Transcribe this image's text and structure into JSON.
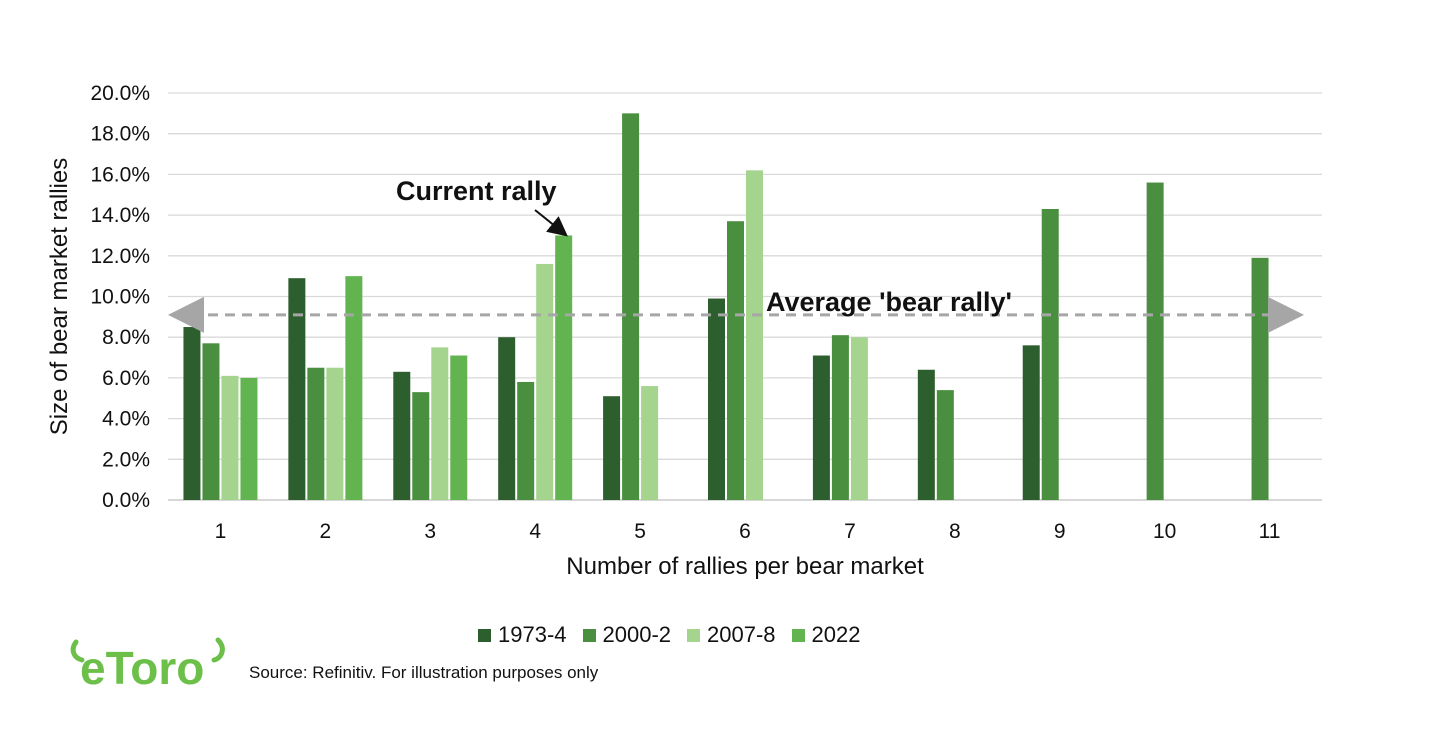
{
  "chart_data": {
    "type": "bar",
    "xlabel": "Number of rallies per bear market",
    "ylabel": "Size of bear market rallies",
    "ylim": [
      0,
      20
    ],
    "yticks": [
      "0.0%",
      "2.0%",
      "4.0%",
      "6.0%",
      "8.0%",
      "10.0%",
      "12.0%",
      "14.0%",
      "16.0%",
      "18.0%",
      "20.0%"
    ],
    "categories": [
      "1",
      "2",
      "3",
      "4",
      "5",
      "6",
      "7",
      "8",
      "9",
      "10",
      "11"
    ],
    "series": [
      {
        "name": "1973-4",
        "color": "#2d5e2d",
        "values": [
          8.5,
          10.9,
          6.3,
          8.0,
          5.1,
          9.9,
          7.1,
          6.4,
          7.6,
          null,
          null
        ]
      },
      {
        "name": "2000-2",
        "color": "#4a8f3f",
        "values": [
          7.7,
          6.5,
          5.3,
          5.8,
          19.0,
          13.7,
          8.1,
          5.4,
          14.3,
          15.6,
          11.9
        ]
      },
      {
        "name": "2007-8",
        "color": "#a5d48e",
        "values": [
          6.1,
          6.5,
          7.5,
          11.6,
          5.6,
          16.2,
          8.0,
          null,
          null,
          null,
          null
        ]
      },
      {
        "name": "2022",
        "color": "#62b450",
        "values": [
          6.0,
          11.0,
          7.1,
          13.0,
          null,
          null,
          null,
          null,
          null,
          null,
          null
        ]
      }
    ],
    "average_line": {
      "label": "Average 'bear rally'",
      "value": 9.1
    },
    "annotations": [
      {
        "label": "Current rally"
      }
    ],
    "grid": true,
    "legend_position": "bottom"
  },
  "source": "Source: Refinitiv. For illustration purposes only",
  "logo": {
    "text": "eToro",
    "color": "#6cc04a"
  }
}
